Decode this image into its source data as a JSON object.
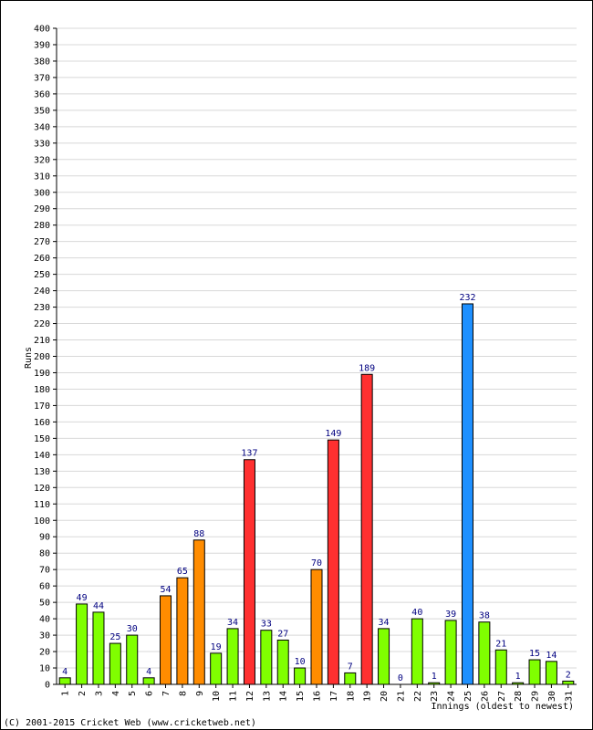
{
  "chart_data": {
    "type": "bar",
    "title": "",
    "ylabel": "Runs",
    "xlabel": "Innings (oldest to newest)",
    "ylim": [
      0,
      400
    ],
    "ytick_step": 10,
    "grid": true,
    "categories": [
      "1",
      "2",
      "3",
      "4",
      "5",
      "6",
      "7",
      "8",
      "9",
      "10",
      "11",
      "12",
      "13",
      "14",
      "15",
      "16",
      "17",
      "18",
      "19",
      "20",
      "21",
      "22",
      "23",
      "24",
      "25",
      "26",
      "27",
      "28",
      "29",
      "30",
      "31"
    ],
    "values": [
      4,
      49,
      44,
      25,
      30,
      4,
      54,
      65,
      88,
      19,
      34,
      137,
      33,
      27,
      10,
      70,
      149,
      7,
      189,
      34,
      0,
      40,
      1,
      39,
      232,
      38,
      21,
      1,
      15,
      14,
      2
    ],
    "colors": [
      "green",
      "green",
      "green",
      "green",
      "green",
      "green",
      "orange",
      "orange",
      "orange",
      "green",
      "green",
      "red",
      "green",
      "green",
      "green",
      "orange",
      "red",
      "green",
      "red",
      "green",
      "green",
      "green",
      "green",
      "green",
      "blue",
      "green",
      "green",
      "green",
      "green",
      "green",
      "green"
    ],
    "palette": {
      "green": "#80ff00",
      "orange": "#ff8c00",
      "red": "#ff3030",
      "blue": "#1e90ff"
    }
  },
  "footer": "(C) 2001-2015 Cricket Web (www.cricketweb.net)"
}
